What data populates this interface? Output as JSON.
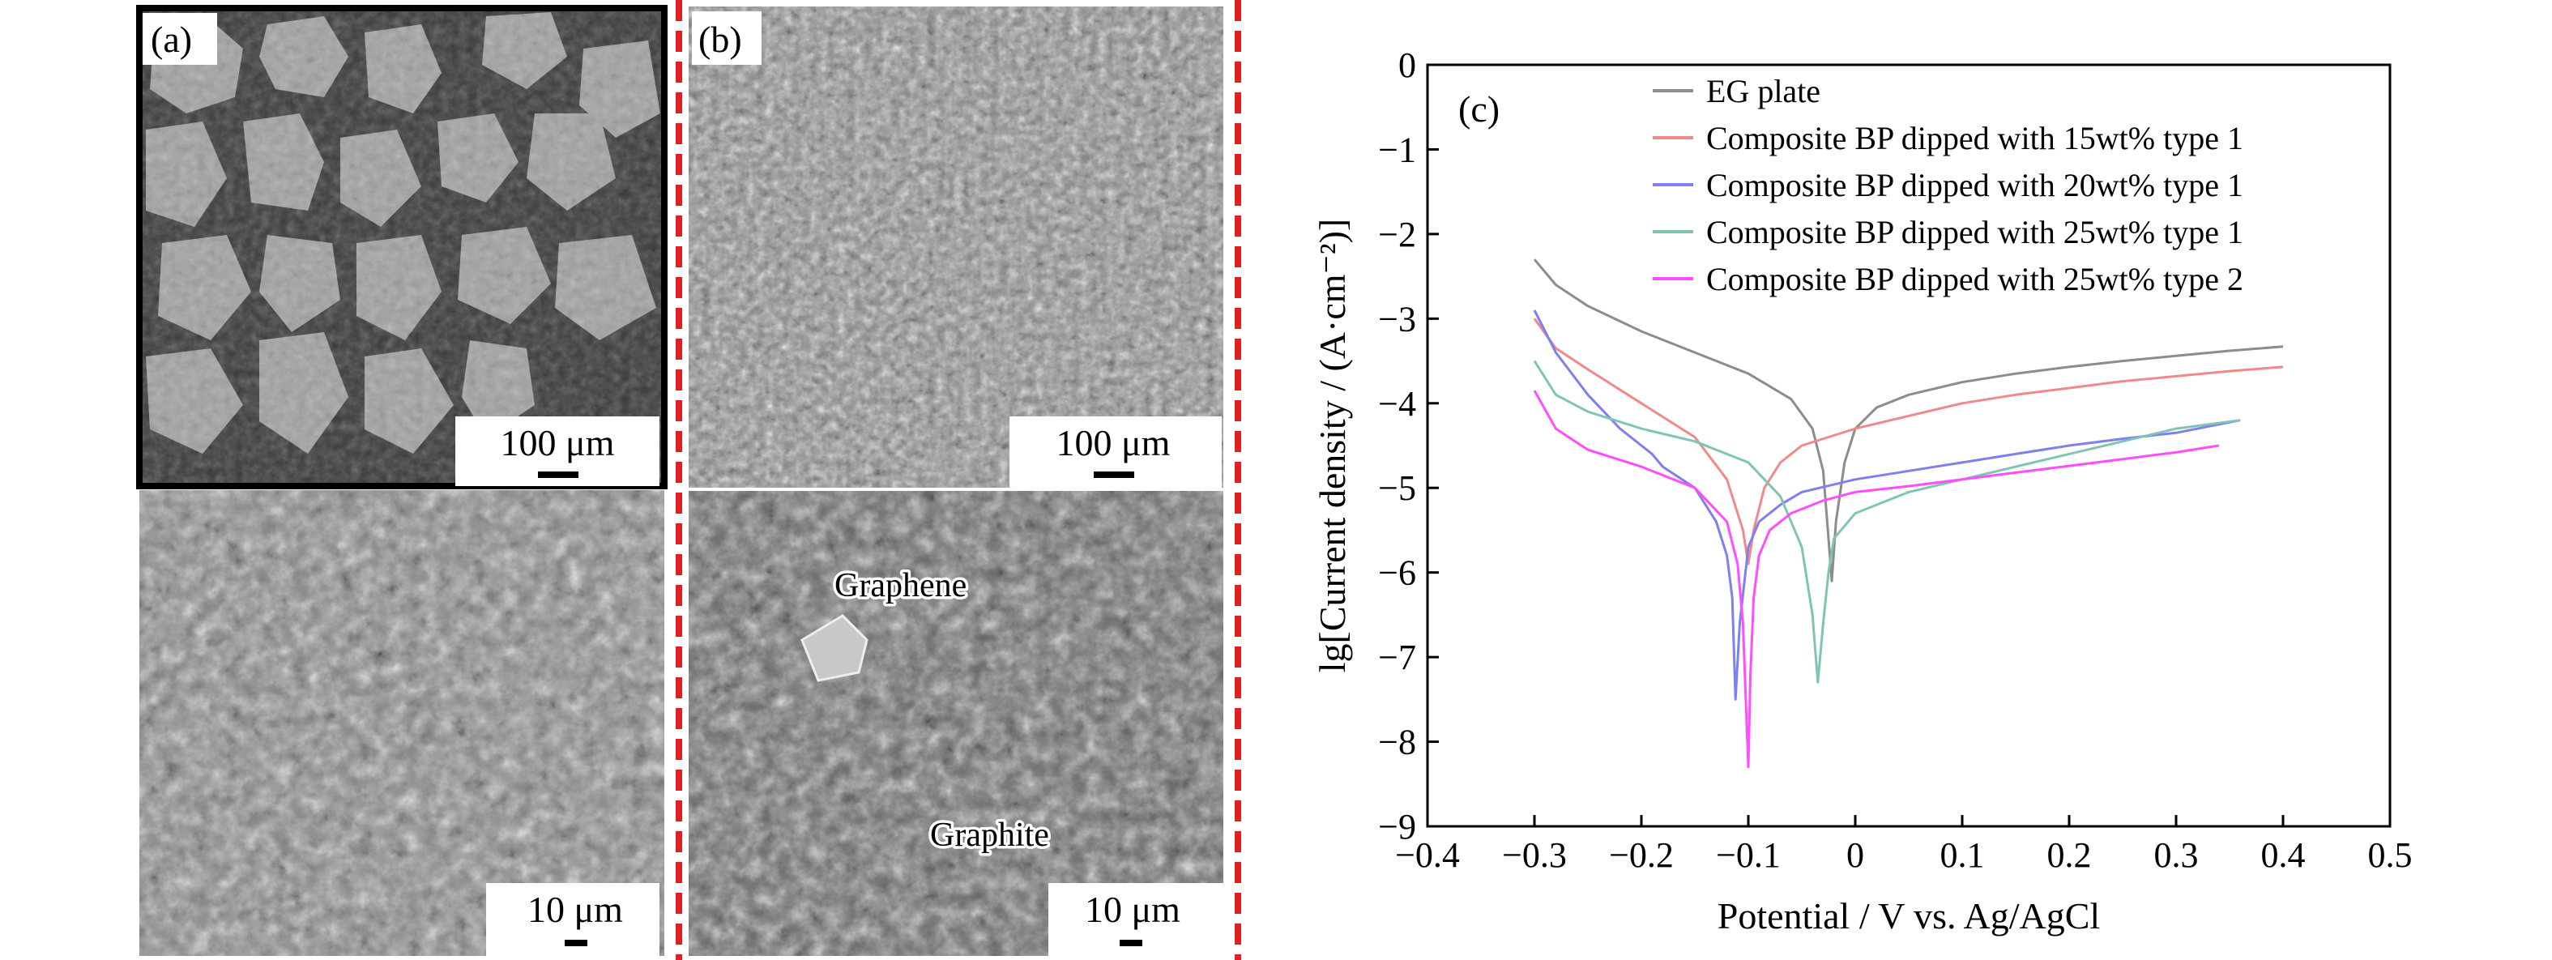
{
  "panels": {
    "a": {
      "label": "(a)",
      "scale_top": "100 μm",
      "scale_bottom": "10 μm"
    },
    "b": {
      "label": "(b)",
      "scale_top": "100 μm",
      "scale_bottom": "10 μm",
      "annotations": {
        "graphene": "Graphene",
        "graphite": "Graphite"
      }
    },
    "c": {
      "label": "(c)"
    }
  },
  "colors": {
    "divider": "#e02020"
  },
  "chart_data": {
    "type": "line",
    "xlabel": "Potential / V vs. Ag/AgCl",
    "ylabel": "lg[Current density / (A·cm⁻²)]",
    "xlim": [
      -0.4,
      0.5
    ],
    "ylim": [
      -9,
      0
    ],
    "xticks": [
      -0.4,
      -0.3,
      -0.2,
      -0.1,
      0,
      0.1,
      0.2,
      0.3,
      0.4,
      0.5
    ],
    "xtick_labels": [
      "−0.4",
      "−0.3",
      "−0.2",
      "−0.1",
      "0",
      "0.1",
      "0.2",
      "0.3",
      "0.4",
      "0.5"
    ],
    "yticks": [
      0,
      -1,
      -2,
      -3,
      -4,
      -5,
      -6,
      -7,
      -8,
      -9
    ],
    "ytick_labels": [
      "0",
      "−1",
      "−2",
      "−3",
      "−4",
      "−5",
      "−6",
      "−7",
      "−8",
      "−9"
    ],
    "legend_position": "top-right",
    "series": [
      {
        "name": "EG plate",
        "color": "#8c8c8c",
        "x": [
          -0.3,
          -0.28,
          -0.25,
          -0.2,
          -0.15,
          -0.1,
          -0.06,
          -0.04,
          -0.03,
          -0.025,
          -0.022,
          -0.018,
          -0.01,
          0,
          0.02,
          0.05,
          0.1,
          0.15,
          0.2,
          0.25,
          0.3,
          0.35,
          0.4
        ],
        "y": [
          -2.3,
          -2.6,
          -2.85,
          -3.15,
          -3.4,
          -3.65,
          -3.95,
          -4.3,
          -4.8,
          -5.6,
          -6.1,
          -5.4,
          -4.7,
          -4.3,
          -4.05,
          -3.9,
          -3.75,
          -3.65,
          -3.57,
          -3.5,
          -3.44,
          -3.38,
          -3.33
        ]
      },
      {
        "name": "Composite BP dipped with 15wt% type 1",
        "color": "#f08a8a",
        "x": [
          -0.3,
          -0.28,
          -0.25,
          -0.2,
          -0.15,
          -0.12,
          -0.105,
          -0.1,
          -0.095,
          -0.085,
          -0.07,
          -0.05,
          0,
          0.05,
          0.1,
          0.15,
          0.2,
          0.25,
          0.3,
          0.35,
          0.4
        ],
        "y": [
          -3.0,
          -3.35,
          -3.6,
          -4.0,
          -4.4,
          -4.9,
          -5.5,
          -5.9,
          -5.5,
          -5.0,
          -4.7,
          -4.5,
          -4.3,
          -4.15,
          -4.0,
          -3.9,
          -3.82,
          -3.74,
          -3.68,
          -3.62,
          -3.57
        ]
      },
      {
        "name": "Composite BP dipped with 20wt% type 1",
        "color": "#7f7ff0",
        "x": [
          -0.3,
          -0.28,
          -0.25,
          -0.22,
          -0.19,
          -0.18,
          -0.15,
          -0.13,
          -0.12,
          -0.115,
          -0.112,
          -0.108,
          -0.1,
          -0.09,
          -0.07,
          -0.05,
          0,
          0.05,
          0.1,
          0.15,
          0.2,
          0.25,
          0.3,
          0.36
        ],
        "y": [
          -2.9,
          -3.4,
          -3.9,
          -4.3,
          -4.6,
          -4.75,
          -5.0,
          -5.4,
          -5.8,
          -6.3,
          -7.5,
          -6.6,
          -5.7,
          -5.4,
          -5.2,
          -5.05,
          -4.9,
          -4.8,
          -4.7,
          -4.6,
          -4.5,
          -4.42,
          -4.35,
          -4.2
        ]
      },
      {
        "name": "Composite BP dipped with 25wt% type 1",
        "color": "#7fc4b4",
        "x": [
          -0.3,
          -0.28,
          -0.25,
          -0.2,
          -0.15,
          -0.1,
          -0.07,
          -0.05,
          -0.04,
          -0.035,
          -0.03,
          -0.025,
          -0.02,
          0,
          0.05,
          0.1,
          0.15,
          0.2,
          0.25,
          0.3,
          0.36
        ],
        "y": [
          -3.5,
          -3.9,
          -4.1,
          -4.3,
          -4.45,
          -4.7,
          -5.1,
          -5.7,
          -6.5,
          -7.3,
          -6.6,
          -6.0,
          -5.6,
          -5.3,
          -5.05,
          -4.9,
          -4.75,
          -4.6,
          -4.45,
          -4.3,
          -4.2
        ]
      },
      {
        "name": "Composite BP dipped with 25wt% type 2",
        "color": "#ff4dff",
        "x": [
          -0.3,
          -0.28,
          -0.25,
          -0.2,
          -0.15,
          -0.12,
          -0.11,
          -0.105,
          -0.1,
          -0.098,
          -0.095,
          -0.09,
          -0.08,
          -0.06,
          -0.03,
          0,
          0.05,
          0.1,
          0.15,
          0.2,
          0.25,
          0.3,
          0.34
        ],
        "y": [
          -3.85,
          -4.3,
          -4.55,
          -4.75,
          -5.0,
          -5.4,
          -5.9,
          -6.6,
          -8.3,
          -7.2,
          -6.3,
          -5.8,
          -5.5,
          -5.3,
          -5.15,
          -5.05,
          -4.98,
          -4.9,
          -4.82,
          -4.74,
          -4.66,
          -4.58,
          -4.5
        ]
      }
    ]
  }
}
